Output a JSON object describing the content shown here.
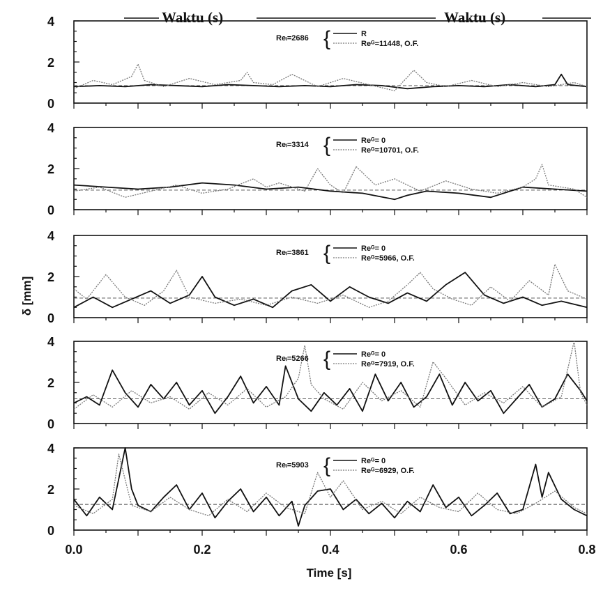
{
  "header": {
    "label_left": "Waktu (s)",
    "label_right": "Waktu (s)"
  },
  "chart_data": {
    "type": "line",
    "xlabel": "Time [s]",
    "ylabel": "δ [mm]",
    "xlim": [
      0.0,
      0.8
    ],
    "ylim": [
      0,
      4
    ],
    "x_tick_labels": [
      "0.0",
      "0.2",
      "0.4",
      "0.6",
      "0.8"
    ],
    "y_tick_labels": [
      "0",
      "2",
      "4"
    ],
    "panels": [
      {
        "re_l_label": "Reₗ=2686",
        "legend": [
          "R",
          "Reᴳ=11448, O.F."
        ],
        "mean_line": 0.85,
        "series": [
          {
            "style": "solid",
            "x": [
              0,
              0.04,
              0.08,
              0.12,
              0.16,
              0.2,
              0.24,
              0.28,
              0.32,
              0.36,
              0.4,
              0.44,
              0.48,
              0.52,
              0.56,
              0.6,
              0.64,
              0.68,
              0.72,
              0.75,
              0.76,
              0.77,
              0.8
            ],
            "y": [
              0.8,
              0.85,
              0.8,
              0.9,
              0.85,
              0.8,
              0.9,
              0.85,
              0.8,
              0.85,
              0.8,
              0.9,
              0.85,
              0.7,
              0.8,
              0.85,
              0.8,
              0.9,
              0.8,
              0.9,
              1.4,
              0.9,
              0.8
            ]
          },
          {
            "style": "dotted",
            "x": [
              0,
              0.03,
              0.06,
              0.09,
              0.1,
              0.11,
              0.14,
              0.18,
              0.22,
              0.26,
              0.27,
              0.28,
              0.31,
              0.34,
              0.38,
              0.42,
              0.46,
              0.5,
              0.53,
              0.55,
              0.58,
              0.62,
              0.66,
              0.7,
              0.74,
              0.78,
              0.8
            ],
            "y": [
              0.7,
              1.1,
              0.9,
              1.3,
              1.9,
              1.1,
              0.8,
              1.2,
              0.9,
              1.1,
              1.5,
              1.0,
              0.9,
              1.4,
              0.8,
              1.2,
              0.9,
              0.6,
              1.6,
              1.0,
              0.8,
              1.1,
              0.8,
              1.0,
              0.8,
              1.0,
              0.8
            ]
          }
        ]
      },
      {
        "re_l_label": "Reₗ=3314",
        "legend": [
          "Reᴳ= 0",
          "Reᴳ=10701, O.F."
        ],
        "mean_line": 0.95,
        "series": [
          {
            "style": "solid",
            "x": [
              0,
              0.05,
              0.1,
              0.15,
              0.2,
              0.25,
              0.3,
              0.35,
              0.4,
              0.45,
              0.5,
              0.52,
              0.55,
              0.6,
              0.65,
              0.7,
              0.75,
              0.8
            ],
            "y": [
              1.2,
              1.1,
              1.0,
              1.1,
              1.3,
              1.2,
              1.0,
              1.1,
              0.9,
              0.8,
              0.5,
              0.7,
              0.9,
              0.8,
              0.6,
              1.1,
              1.0,
              0.9
            ]
          },
          {
            "style": "dotted",
            "x": [
              0,
              0.04,
              0.08,
              0.12,
              0.16,
              0.2,
              0.24,
              0.28,
              0.3,
              0.32,
              0.36,
              0.38,
              0.4,
              0.42,
              0.44,
              0.47,
              0.5,
              0.54,
              0.58,
              0.62,
              0.66,
              0.7,
              0.72,
              0.73,
              0.74,
              0.78,
              0.8
            ],
            "y": [
              0.9,
              1.1,
              0.6,
              0.9,
              1.2,
              0.8,
              1.0,
              1.5,
              1.1,
              1.3,
              0.9,
              2.0,
              1.2,
              0.8,
              2.1,
              1.2,
              1.5,
              0.9,
              1.4,
              1.0,
              0.8,
              1.1,
              1.5,
              2.2,
              1.2,
              1.0,
              0.6
            ]
          }
        ]
      },
      {
        "re_l_label": "Reₗ=3861",
        "legend": [
          "Reᴳ= 0",
          "Reᴳ=5966, O.F."
        ],
        "mean_line": 0.95,
        "series": [
          {
            "style": "solid",
            "x": [
              0,
              0.03,
              0.06,
              0.09,
              0.12,
              0.15,
              0.18,
              0.2,
              0.22,
              0.25,
              0.28,
              0.31,
              0.34,
              0.37,
              0.4,
              0.43,
              0.46,
              0.49,
              0.52,
              0.55,
              0.58,
              0.61,
              0.64,
              0.67,
              0.7,
              0.73,
              0.76,
              0.8
            ],
            "y": [
              0.5,
              1.0,
              0.5,
              0.9,
              1.3,
              0.7,
              1.1,
              2.0,
              1.0,
              0.6,
              0.9,
              0.5,
              1.3,
              1.6,
              0.8,
              1.5,
              1.0,
              0.7,
              1.2,
              0.8,
              1.6,
              2.2,
              1.1,
              0.7,
              1.0,
              0.6,
              0.8,
              0.5
            ]
          },
          {
            "style": "dotted",
            "x": [
              0,
              0.02,
              0.05,
              0.08,
              0.11,
              0.14,
              0.16,
              0.18,
              0.22,
              0.26,
              0.3,
              0.34,
              0.38,
              0.42,
              0.46,
              0.49,
              0.52,
              0.54,
              0.56,
              0.59,
              0.62,
              0.65,
              0.68,
              0.71,
              0.74,
              0.75,
              0.77,
              0.8
            ],
            "y": [
              1.4,
              0.9,
              2.1,
              1.0,
              0.6,
              1.3,
              2.3,
              1.0,
              0.7,
              0.9,
              0.6,
              1.0,
              0.7,
              1.1,
              0.5,
              0.8,
              1.6,
              2.2,
              1.4,
              0.9,
              0.6,
              1.5,
              0.8,
              1.8,
              1.1,
              2.6,
              1.3,
              0.9
            ]
          }
        ]
      },
      {
        "re_l_label": "Reₗ=5266",
        "legend": [
          "Reᴳ= 0",
          "Reᴳ=7919, O.F."
        ],
        "mean_line": 1.2,
        "series": [
          {
            "style": "solid",
            "x": [
              0,
              0.02,
              0.04,
              0.06,
              0.08,
              0.1,
              0.12,
              0.14,
              0.16,
              0.18,
              0.2,
              0.22,
              0.24,
              0.26,
              0.28,
              0.3,
              0.32,
              0.33,
              0.35,
              0.37,
              0.39,
              0.41,
              0.43,
              0.45,
              0.47,
              0.49,
              0.51,
              0.53,
              0.55,
              0.57,
              0.59,
              0.61,
              0.63,
              0.65,
              0.67,
              0.69,
              0.71,
              0.73,
              0.75,
              0.77,
              0.79,
              0.8
            ],
            "y": [
              1.0,
              1.3,
              0.9,
              2.6,
              1.5,
              0.8,
              1.9,
              1.2,
              2.0,
              0.9,
              1.6,
              0.5,
              1.3,
              2.3,
              1.0,
              1.8,
              0.9,
              2.8,
              1.2,
              0.6,
              1.5,
              0.9,
              1.7,
              0.6,
              2.4,
              1.1,
              2.0,
              0.8,
              1.3,
              2.4,
              0.9,
              2.0,
              1.1,
              1.6,
              0.5,
              1.2,
              1.9,
              0.8,
              1.2,
              2.4,
              1.6,
              1.1
            ]
          },
          {
            "style": "dotted",
            "x": [
              0,
              0.03,
              0.06,
              0.09,
              0.12,
              0.15,
              0.18,
              0.21,
              0.24,
              0.27,
              0.3,
              0.33,
              0.35,
              0.36,
              0.37,
              0.39,
              0.42,
              0.45,
              0.48,
              0.51,
              0.54,
              0.56,
              0.58,
              0.61,
              0.64,
              0.67,
              0.7,
              0.73,
              0.76,
              0.78,
              0.79,
              0.8
            ],
            "y": [
              0.7,
              1.4,
              0.8,
              1.6,
              1.0,
              1.3,
              0.7,
              1.5,
              0.9,
              1.7,
              0.8,
              1.3,
              2.2,
              3.8,
              1.9,
              1.2,
              0.7,
              2.0,
              1.1,
              1.6,
              0.8,
              3.0,
              2.2,
              0.9,
              1.5,
              1.0,
              1.8,
              0.8,
              1.3,
              4.0,
              1.5,
              0.9
            ]
          }
        ]
      },
      {
        "re_l_label": "Reₗ=5903",
        "legend": [
          "Reᴳ= 0",
          "Reᴳ=6929, O.F."
        ],
        "mean_line": 1.25,
        "series": [
          {
            "style": "solid",
            "x": [
              0,
              0.02,
              0.04,
              0.06,
              0.08,
              0.09,
              0.1,
              0.12,
              0.14,
              0.16,
              0.18,
              0.2,
              0.22,
              0.24,
              0.26,
              0.28,
              0.3,
              0.32,
              0.34,
              0.35,
              0.36,
              0.38,
              0.4,
              0.42,
              0.44,
              0.46,
              0.48,
              0.5,
              0.52,
              0.54,
              0.56,
              0.58,
              0.6,
              0.62,
              0.64,
              0.66,
              0.68,
              0.7,
              0.72,
              0.73,
              0.74,
              0.76,
              0.78,
              0.8
            ],
            "y": [
              1.5,
              0.7,
              1.6,
              1.0,
              4.0,
              2.0,
              1.2,
              0.9,
              1.6,
              2.2,
              1.0,
              1.8,
              0.6,
              1.4,
              2.0,
              0.9,
              1.6,
              0.7,
              1.4,
              0.2,
              1.2,
              1.9,
              2.0,
              1.0,
              1.5,
              0.8,
              1.3,
              0.6,
              1.4,
              0.9,
              2.2,
              1.1,
              1.6,
              0.7,
              1.2,
              1.8,
              0.8,
              1.0,
              3.2,
              1.6,
              2.8,
              1.5,
              1.0,
              0.7
            ]
          },
          {
            "style": "dotted",
            "x": [
              0,
              0.03,
              0.06,
              0.07,
              0.09,
              0.12,
              0.15,
              0.18,
              0.21,
              0.24,
              0.27,
              0.3,
              0.33,
              0.36,
              0.38,
              0.4,
              0.42,
              0.45,
              0.48,
              0.51,
              0.54,
              0.57,
              0.6,
              0.63,
              0.66,
              0.69,
              0.72,
              0.75,
              0.78,
              0.8
            ],
            "y": [
              1.2,
              0.8,
              1.5,
              3.7,
              1.2,
              0.9,
              1.6,
              1.0,
              0.7,
              1.5,
              0.9,
              1.8,
              1.1,
              0.8,
              2.8,
              1.6,
              2.4,
              1.0,
              1.4,
              0.8,
              1.6,
              1.1,
              0.9,
              1.8,
              1.0,
              0.8,
              1.3,
              1.9,
              1.1,
              0.8
            ]
          }
        ]
      }
    ]
  }
}
